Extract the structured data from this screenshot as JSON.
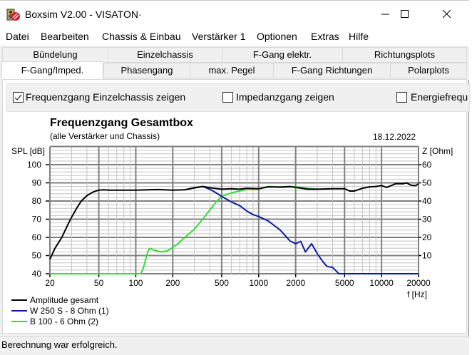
{
  "window": {
    "title": "Boxsim V2.00 - VISATON·",
    "controls": {
      "minimize": "—",
      "maximize": "☐",
      "close": "✕"
    }
  },
  "menu": {
    "items": [
      "Datei",
      "Bearbeiten",
      "Chassis & Einbau",
      "Verstärker 1",
      "Optionen",
      "Extras",
      "Hilfe"
    ]
  },
  "tabs": {
    "row1": [
      "Bündelung",
      "Einzelchassis",
      "F-Gang elektr.",
      "Richtungsplots"
    ],
    "row2": [
      "F-Gang/Imped.",
      "Phasengang",
      "max. Pegel",
      "F-Gang Richtungen",
      "Polarplots"
    ],
    "active": "F-Gang/Imped."
  },
  "options": {
    "show_single_chassis": {
      "label": "Frequenzgang Einzelchassis zeigen",
      "checked": true
    },
    "show_impedance": {
      "label": "Impedanzgang zeigen",
      "checked": false
    },
    "show_energy": {
      "label": "Energiefrequ",
      "checked": false
    }
  },
  "chart": {
    "title": "Frequenzgang Gesamtbox",
    "subtitle": "(alle Verstärker und Chassis)",
    "date": "18.12.2022",
    "y_left_label": "SPL [dB]",
    "y_right_label": "Z [Ohm]",
    "x_label": "f [Hz]"
  },
  "chart_data": {
    "type": "line",
    "title": "Frequenzgang Gesamtbox",
    "subtitle": "(alle Verstärker und Chassis)",
    "xlabel": "f [Hz]",
    "ylabel": "SPL [dB]",
    "y2label": "Z [Ohm]",
    "xscale": "log",
    "xlim": [
      20,
      20000
    ],
    "ylim": [
      40,
      110
    ],
    "y2lim": [
      0,
      70
    ],
    "x_ticks": [
      20,
      50,
      100,
      200,
      500,
      1000,
      2000,
      5000,
      10000,
      20000
    ],
    "y_ticks": [
      40,
      50,
      60,
      70,
      80,
      90,
      100
    ],
    "y2_ticks": [
      10,
      20,
      30,
      40,
      50,
      60
    ],
    "grid": true,
    "legend_position": "bottom-left",
    "series": [
      {
        "name": "Amplitude gesamt",
        "color": "#000000",
        "x": [
          20,
          22,
          25,
          28,
          30,
          33,
          36,
          40,
          45,
          50,
          55,
          60,
          80,
          100,
          150,
          200,
          250,
          300,
          350,
          400,
          500,
          600,
          700,
          800,
          1000,
          1200,
          1500,
          1800,
          2000,
          2500,
          3000,
          4000,
          5000,
          5500,
          6000,
          7000,
          8000,
          9000,
          10000,
          11000,
          13000,
          15000,
          16000,
          17000,
          18000,
          19000,
          20000
        ],
        "y": [
          48,
          54,
          60,
          67,
          71,
          76,
          80,
          83,
          85,
          86,
          86.2,
          86,
          86,
          86,
          86.3,
          86,
          86.2,
          87.3,
          88,
          87.3,
          86.5,
          86.8,
          86.5,
          87,
          86.8,
          87.8,
          87.7,
          88,
          87.5,
          86.5,
          86.5,
          86.8,
          86.8,
          85.5,
          85.5,
          87,
          87.8,
          88,
          88.5,
          87.5,
          89.5,
          89.5,
          90,
          89,
          88.5,
          88.5,
          89.5
        ]
      },
      {
        "name": "W 250 S - 8 Ohm  (1)",
        "color": "#0a1aa8",
        "x": [
          250,
          300,
          350,
          400,
          450,
          500,
          600,
          700,
          800,
          900,
          1000,
          1200,
          1500,
          1800,
          2000,
          2200,
          2400,
          2700,
          3000,
          3300,
          3600,
          4000,
          4500,
          5000,
          10000,
          20000
        ],
        "y": [
          86.2,
          87.2,
          88,
          86.5,
          84.5,
          82.5,
          79.5,
          77.5,
          74.5,
          72.5,
          71.5,
          69,
          64,
          58,
          56.5,
          57.8,
          52,
          56.5,
          51,
          47,
          44,
          43.5,
          40,
          40,
          40,
          40
        ]
      },
      {
        "name": "B 100 - 6 Ohm (2)",
        "color": "#33dd33",
        "x": [
          20,
          50,
          100,
          110,
          115,
          125,
          130,
          140,
          160,
          180,
          200,
          220,
          250,
          300,
          350,
          400,
          450,
          500,
          600,
          700,
          800,
          1000,
          1100,
          1200,
          1500,
          2000,
          2500,
          3000
        ],
        "y": [
          40,
          40,
          40,
          40,
          43,
          52,
          54,
          53,
          52,
          52.5,
          54.5,
          56.5,
          60,
          64.5,
          70,
          75,
          79.5,
          82.5,
          84.5,
          85.5,
          86.5,
          86.5,
          87.3,
          88,
          87.5,
          87.8,
          87,
          86.5
        ]
      }
    ]
  },
  "legend": {
    "items": [
      {
        "label": "Amplitude gesamt",
        "color": "#000000"
      },
      {
        "label": "W 250 S - 8 Ohm  (1)",
        "color": "#0a1aa8"
      },
      {
        "label": "B 100 - 6 Ohm (2)",
        "color": "#33dd33"
      }
    ]
  },
  "status": {
    "text": "Berechnung war erfolgreich."
  }
}
